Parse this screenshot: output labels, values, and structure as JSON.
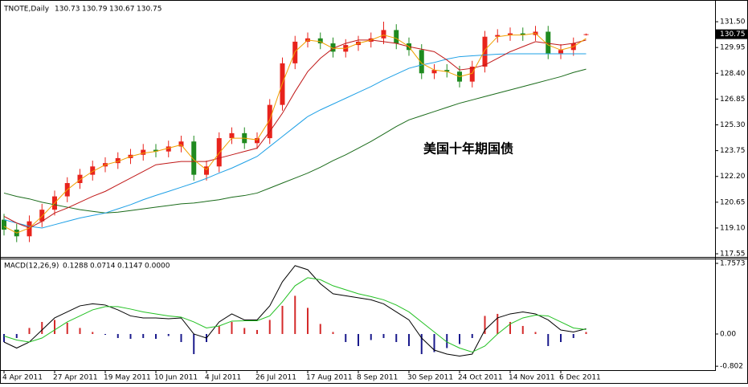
{
  "chart_data": [
    {
      "type": "candlestick",
      "title": "TNOTE,Daily",
      "info": [
        "130.73",
        "130.79",
        "130.67",
        "130.75"
      ],
      "annotation": "美国十年期国债",
      "current_price": 130.75,
      "categories": [
        "4 Apr 2011",
        null,
        null,
        null,
        "27 Apr 2011",
        null,
        null,
        null,
        "19 May 2011",
        null,
        null,
        null,
        "10 Jun 2011",
        null,
        null,
        null,
        "4 Jul 2011",
        null,
        null,
        null,
        "26 Jul 2011",
        null,
        null,
        null,
        "17 Aug 2011",
        null,
        null,
        null,
        "8 Sep 2011",
        null,
        null,
        null,
        "30 Sep 2011",
        null,
        null,
        null,
        "24 Oct 2011",
        null,
        null,
        null,
        "14 Nov 2011",
        null,
        null,
        null,
        "6 Dec 2011",
        null,
        null
      ],
      "open": [
        119.6,
        119.0,
        118.6,
        119.5,
        120.2,
        121.0,
        121.8,
        122.3,
        122.8,
        123.0,
        123.3,
        123.5,
        123.8,
        123.7,
        124.0,
        124.3,
        122.3,
        122.8,
        124.5,
        124.8,
        124.2,
        124.5,
        126.5,
        129.0,
        130.3,
        130.5,
        130.2,
        129.7,
        130.1,
        130.3,
        130.5,
        131.0,
        130.2,
        129.8,
        128.4,
        128.6,
        128.5,
        127.9,
        128.8,
        130.6,
        130.7,
        130.8,
        130.7,
        130.9,
        129.6,
        129.8,
        130.73
      ],
      "high": [
        119.95,
        119.35,
        119.85,
        120.55,
        121.35,
        122.15,
        122.65,
        123.15,
        123.35,
        123.65,
        123.85,
        124.15,
        124.15,
        124.35,
        124.65,
        124.65,
        123.15,
        124.85,
        125.15,
        125.15,
        124.85,
        126.85,
        129.35,
        130.65,
        130.85,
        130.85,
        130.55,
        130.45,
        130.65,
        130.85,
        131.5,
        131.35,
        130.55,
        130.15,
        128.95,
        128.95,
        128.85,
        129.15,
        130.95,
        131.05,
        131.15,
        131.15,
        131.25,
        131.25,
        130.15,
        130.55,
        130.79
      ],
      "low": [
        118.65,
        118.25,
        118.25,
        119.15,
        119.85,
        120.65,
        121.45,
        121.95,
        122.45,
        122.65,
        122.95,
        123.15,
        123.35,
        123.35,
        123.65,
        121.95,
        121.95,
        122.45,
        124.15,
        123.85,
        123.85,
        124.15,
        126.15,
        128.65,
        129.95,
        129.85,
        129.35,
        129.35,
        129.75,
        129.95,
        130.15,
        129.85,
        129.45,
        128.05,
        128.05,
        128.15,
        127.55,
        127.55,
        128.45,
        130.25,
        130.35,
        130.35,
        130.35,
        129.25,
        129.25,
        129.45,
        130.67
      ],
      "close": [
        119.0,
        118.6,
        119.5,
        120.2,
        121.0,
        121.8,
        122.3,
        122.8,
        123.0,
        123.3,
        123.5,
        123.8,
        123.7,
        124.0,
        124.3,
        122.3,
        122.8,
        124.5,
        124.8,
        124.2,
        124.5,
        126.5,
        129.0,
        130.3,
        130.5,
        130.2,
        129.7,
        130.1,
        130.3,
        130.5,
        131.0,
        130.2,
        129.8,
        128.4,
        128.6,
        128.5,
        127.9,
        128.8,
        130.6,
        130.7,
        130.8,
        130.7,
        130.9,
        129.6,
        129.8,
        130.2,
        130.75
      ],
      "up_color": "#e8231c",
      "down_color": "#1f8a1f",
      "lines": [
        {
          "color": "#1a6b1a",
          "values": [
            121.2,
            121.0,
            120.85,
            120.65,
            120.5,
            120.35,
            120.2,
            120.1,
            120.0,
            120.05,
            120.15,
            120.25,
            120.35,
            120.45,
            120.55,
            120.6,
            120.7,
            120.8,
            120.95,
            121.05,
            121.2,
            121.5,
            121.8,
            122.1,
            122.4,
            122.75,
            123.15,
            123.5,
            123.9,
            124.3,
            124.75,
            125.2,
            125.6,
            125.85,
            126.1,
            126.35,
            126.6,
            126.8,
            127.0,
            127.2,
            127.4,
            127.6,
            127.8,
            128.0,
            128.2,
            128.45,
            128.65
          ]
        },
        {
          "color": "#1ea0e6",
          "values": [
            119.6,
            119.4,
            119.2,
            119.1,
            119.3,
            119.5,
            119.7,
            119.85,
            120.0,
            120.25,
            120.5,
            120.8,
            121.06,
            121.3,
            121.55,
            121.8,
            122.08,
            122.4,
            122.7,
            123.05,
            123.4,
            124.0,
            124.6,
            125.2,
            125.8,
            126.2,
            126.55,
            126.9,
            127.25,
            127.6,
            128.0,
            128.35,
            128.7,
            128.9,
            129.05,
            129.25,
            129.4,
            129.45,
            129.5,
            129.55,
            129.57,
            129.57,
            129.57,
            129.57,
            129.57,
            129.57,
            129.57
          ]
        },
        {
          "color": "#c01818",
          "values": [
            119.8,
            119.4,
            119.1,
            119.5,
            120.0,
            120.3,
            120.65,
            121.0,
            121.3,
            121.7,
            122.1,
            122.5,
            122.9,
            123.0,
            123.1,
            123.1,
            123.1,
            123.3,
            123.5,
            123.7,
            123.9,
            124.9,
            126.0,
            127.3,
            128.5,
            129.3,
            129.9,
            130.2,
            130.4,
            130.4,
            130.3,
            130.2,
            130.0,
            129.85,
            129.7,
            129.2,
            128.6,
            128.7,
            128.9,
            129.3,
            129.7,
            130.0,
            130.3,
            130.2,
            130.1,
            130.2,
            130.4
          ]
        },
        {
          "color": "#f0a000",
          "values": [
            119.2,
            118.8,
            119.1,
            119.8,
            120.6,
            121.4,
            122.0,
            122.5,
            122.9,
            123.1,
            123.4,
            123.6,
            123.7,
            123.9,
            124.1,
            123.2,
            122.6,
            123.6,
            124.5,
            124.5,
            124.4,
            125.6,
            127.8,
            129.7,
            130.4,
            130.3,
            129.9,
            129.9,
            130.2,
            130.4,
            130.7,
            130.5,
            130.0,
            129.0,
            128.6,
            128.5,
            128.2,
            128.4,
            129.8,
            130.6,
            130.7,
            130.7,
            130.8,
            130.1,
            129.8,
            130.0,
            130.5
          ]
        }
      ],
      "ylim": [
        117.36,
        132.42
      ],
      "yticks": [
        {
          "value": 131.5,
          "label": "131.50"
        },
        129.95,
        {
          "value": 128.4,
          "label": "128.40"
        },
        126.85,
        {
          "value": 125.3,
          "label": "125.30"
        },
        123.75,
        {
          "value": 122.2,
          "label": "122.20"
        },
        120.65,
        {
          "value": 119.1,
          "label": "119.10"
        },
        117.55
      ]
    },
    {
      "type": "macd",
      "title": "MACD(12,26,9)",
      "info": [
        "0.1288",
        "0.0714",
        "0.1147",
        "0.0000"
      ],
      "histogram": [
        -0.2,
        -0.1,
        0.15,
        0.3,
        0.35,
        0.28,
        0.15,
        0.05,
        -0.02,
        -0.1,
        -0.12,
        -0.1,
        -0.12,
        -0.05,
        -0.2,
        -0.5,
        -0.2,
        0.2,
        0.3,
        0.15,
        0.1,
        0.35,
        0.7,
        0.95,
        0.65,
        0.25,
        0.05,
        -0.2,
        -0.3,
        -0.15,
        -0.1,
        -0.2,
        -0.3,
        -0.5,
        -0.45,
        -0.35,
        -0.25,
        -0.1,
        0.45,
        0.5,
        0.3,
        0.2,
        0.05,
        -0.3,
        -0.2,
        -0.1,
        0.05
      ],
      "pos_color": "#d42a2a",
      "neg_color": "#1a1a8c",
      "series": [
        {
          "color": "#000000",
          "values": [
            -0.2,
            -0.35,
            -0.2,
            0.1,
            0.4,
            0.55,
            0.7,
            0.75,
            0.72,
            0.6,
            0.45,
            0.4,
            0.4,
            0.38,
            0.4,
            0.0,
            -0.1,
            0.3,
            0.5,
            0.35,
            0.35,
            0.7,
            1.3,
            1.7,
            1.6,
            1.25,
            1.0,
            0.95,
            0.9,
            0.85,
            0.75,
            0.55,
            0.35,
            -0.1,
            -0.4,
            -0.5,
            -0.55,
            -0.5,
            0.1,
            0.4,
            0.5,
            0.55,
            0.5,
            0.35,
            0.1,
            0.05,
            0.13
          ]
        },
        {
          "color": "#22c022",
          "values": [
            -0.05,
            -0.15,
            -0.2,
            -0.1,
            0.1,
            0.3,
            0.45,
            0.6,
            0.68,
            0.68,
            0.62,
            0.55,
            0.5,
            0.45,
            0.42,
            0.3,
            0.15,
            0.2,
            0.32,
            0.33,
            0.33,
            0.45,
            0.8,
            1.2,
            1.4,
            1.35,
            1.2,
            1.1,
            1.0,
            0.93,
            0.85,
            0.72,
            0.55,
            0.3,
            0.05,
            -0.2,
            -0.35,
            -0.45,
            -0.3,
            0.0,
            0.25,
            0.4,
            0.47,
            0.45,
            0.3,
            0.15,
            0.11
          ]
        }
      ],
      "ylim": [
        -0.879,
        1.877
      ],
      "yticks": [
        1.7573,
        {
          "value": 0,
          "label": "0.00"
        },
        -0.802
      ]
    }
  ]
}
